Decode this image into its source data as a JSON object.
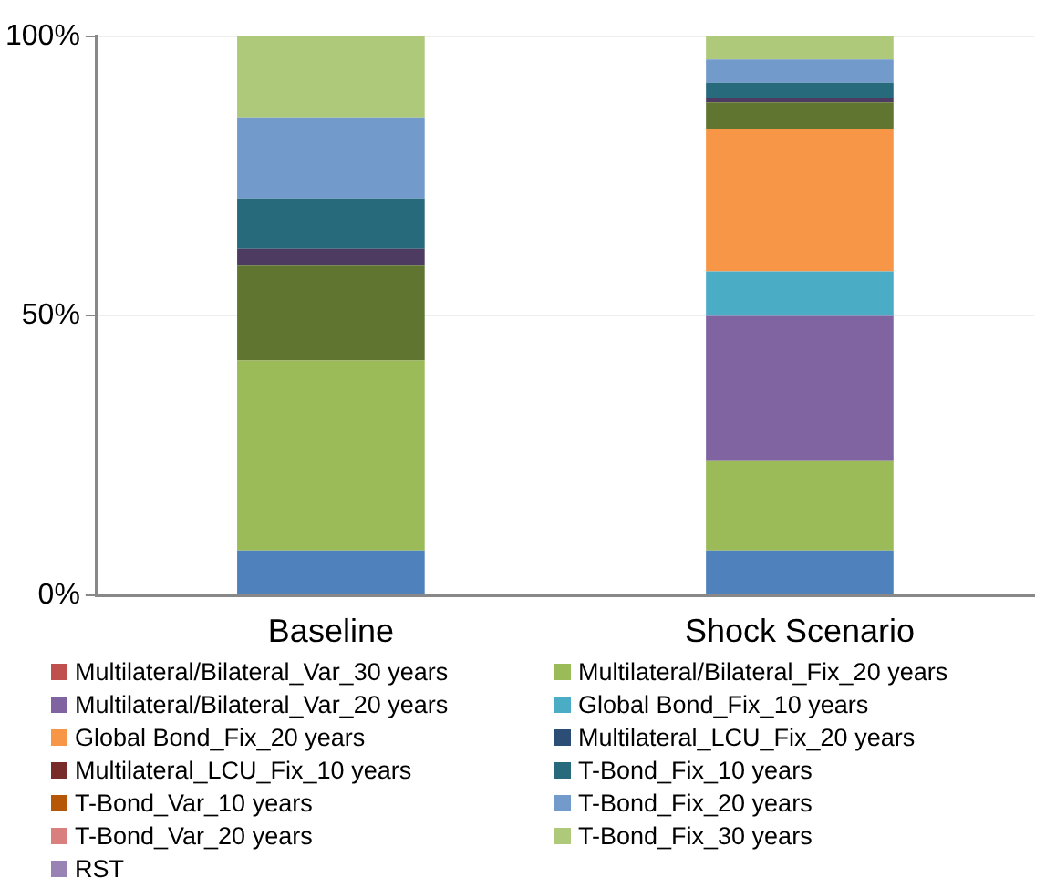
{
  "chart_data": {
    "type": "bar",
    "stacked": true,
    "categories": [
      "Baseline",
      "Shock Scenario"
    ],
    "ylim": [
      0,
      100
    ],
    "yticks": [
      {
        "value": 0,
        "label": "0%"
      },
      {
        "value": 50,
        "label": "50%"
      },
      {
        "value": 100,
        "label": "100%"
      }
    ],
    "grid": "y",
    "legend": "bottom",
    "series": [
      {
        "color": "#4f81bd",
        "values": [
          8,
          8
        ]
      },
      {
        "name": "Multilateral/Bilateral_Var_30 years",
        "color": "#c0504d",
        "values": [
          0,
          0
        ]
      },
      {
        "name": "Multilateral/Bilateral_Fix_20 years",
        "color": "#9bbb59",
        "values": [
          34,
          16
        ]
      },
      {
        "name": "Multilateral/Bilateral_Var_20 years",
        "color": "#8064a2",
        "values": [
          0,
          26
        ]
      },
      {
        "name": "Global Bond_Fix_10 years",
        "color": "#4bacc6",
        "values": [
          0,
          8
        ]
      },
      {
        "name": "Global Bond_Fix_20 years",
        "color": "#f79646",
        "values": [
          0,
          25.5
        ]
      },
      {
        "color": "#5f7530",
        "values": [
          17,
          4.7
        ]
      },
      {
        "color": "#4d3b62",
        "values": [
          3,
          0.8
        ]
      },
      {
        "name": "Multilateral_LCU_Fix_20 years",
        "color": "#2c4d75",
        "values": [
          0,
          0
        ]
      },
      {
        "name": "Multilateral_LCU_Fix_10 years",
        "color": "#772c2a",
        "values": [
          0,
          0
        ]
      },
      {
        "name": "T-Bond_Fix_10 years",
        "color": "#276a7c",
        "values": [
          9,
          2.7
        ]
      },
      {
        "name": "T-Bond_Var_10 years",
        "color": "#b65708",
        "values": [
          0,
          0
        ]
      },
      {
        "name": "T-Bond_Fix_20 years",
        "color": "#729aca",
        "values": [
          14.5,
          4.2
        ]
      },
      {
        "name": "T-Bond_Var_20 years",
        "color": "#d9807f",
        "values": [
          0,
          0
        ]
      },
      {
        "name": "T-Bond_Fix_30 years",
        "color": "#afc97a",
        "values": [
          14.5,
          4.1
        ]
      },
      {
        "name": "RST",
        "color": "#9983b5",
        "values": [
          0,
          0
        ]
      }
    ]
  }
}
